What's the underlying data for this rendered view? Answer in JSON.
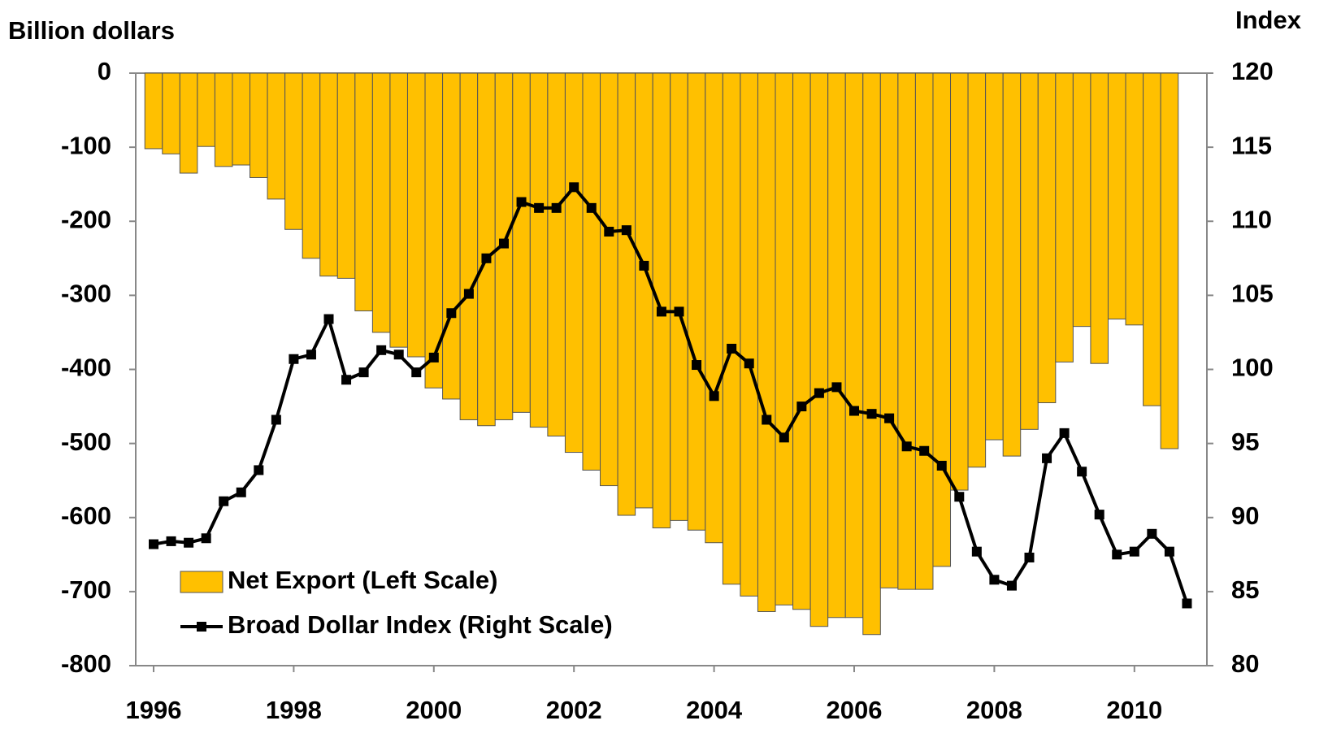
{
  "chart_data": {
    "type": "bar",
    "y_label": "Billion dollars",
    "y2_label": "Index",
    "categories": [
      "1996",
      null,
      null,
      null,
      null,
      null,
      null,
      null,
      "1998",
      null,
      null,
      null,
      null,
      null,
      null,
      null,
      "2000",
      null,
      null,
      null,
      null,
      null,
      null,
      null,
      "2002",
      null,
      null,
      null,
      null,
      null,
      null,
      null,
      "2004",
      null,
      null,
      null,
      null,
      null,
      null,
      null,
      "2006",
      null,
      null,
      null,
      null,
      null,
      null,
      null,
      "2008",
      null,
      null,
      null,
      null,
      null,
      null,
      null,
      "2010",
      null,
      null,
      null
    ],
    "series": [
      {
        "name": "Net Export (Left Scale)",
        "type": "bar",
        "color": "#ffc000",
        "values": [
          -102,
          -109,
          -135,
          -99,
          -126,
          -124,
          -141,
          -170,
          -211,
          -250,
          -274,
          -277,
          -321,
          -350,
          -370,
          -383,
          -425,
          -440,
          -468,
          -476,
          -468,
          -458,
          -478,
          -490,
          -512,
          -536,
          -557,
          -597,
          -587,
          -614,
          -604,
          -617,
          -634,
          -690,
          -706,
          -727,
          -718,
          -724,
          -747,
          -735,
          -735,
          -758,
          -695,
          -697,
          -697,
          -666,
          -563,
          -532,
          -495,
          -517,
          -481,
          -445,
          -390,
          -342,
          -392,
          -332,
          -340,
          -449,
          -507,
          null
        ]
      },
      {
        "name": "Broad Dollar Index (Right Scale)",
        "type": "line",
        "axis": "y2",
        "color": "#000000",
        "values": [
          88.2,
          88.4,
          88.3,
          88.6,
          91.1,
          91.7,
          93.2,
          96.6,
          100.7,
          101.0,
          103.4,
          99.3,
          99.8,
          101.3,
          101.0,
          99.8,
          100.8,
          103.8,
          105.1,
          107.5,
          108.5,
          111.3,
          110.9,
          110.9,
          112.3,
          110.9,
          109.3,
          109.4,
          107.0,
          103.9,
          103.9,
          100.3,
          98.2,
          101.4,
          100.4,
          96.6,
          95.4,
          97.5,
          98.4,
          98.8,
          97.2,
          97.0,
          96.7,
          94.8,
          94.5,
          93.5,
          91.4,
          87.7,
          85.8,
          85.4,
          87.3,
          94.0,
          95.7,
          93.1,
          90.2,
          87.5,
          87.7,
          88.9,
          87.7,
          84.2
        ]
      }
    ],
    "ylim": [
      -800,
      0
    ],
    "yticks": [
      0,
      -100,
      -200,
      -300,
      -400,
      -500,
      -600,
      -700,
      -800
    ],
    "y2lim": [
      80,
      120
    ],
    "y2ticks": [
      120,
      115,
      110,
      105,
      100,
      95,
      90,
      85,
      80
    ],
    "grid": false,
    "legend": "lower left"
  }
}
